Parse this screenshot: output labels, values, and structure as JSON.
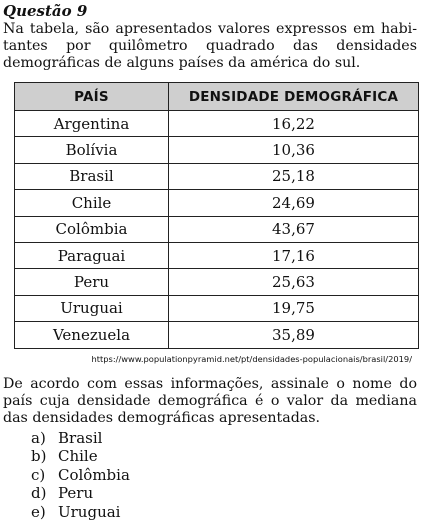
{
  "question_title": "Questão 9",
  "intro": "Na tabela, são apresentados valores expressos em habi- tantes por quilômetro quadrado das densidades demográficas de alguns países da américa do sul.",
  "table": {
    "headers": [
      "PAÍS",
      "DENSIDADE DEMOGRÁFICA"
    ],
    "rows": [
      {
        "country": "Argentina",
        "density": "16,22"
      },
      {
        "country": "Bolívia",
        "density": "10,36"
      },
      {
        "country": "Brasil",
        "density": "25,18"
      },
      {
        "country": "Chile",
        "density": "24,69"
      },
      {
        "country": "Colômbia",
        "density": "43,67"
      },
      {
        "country": "Paraguai",
        "density": "17,16"
      },
      {
        "country": "Peru",
        "density": "25,63"
      },
      {
        "country": "Uruguai",
        "density": "19,75"
      },
      {
        "country": "Venezuela",
        "density": "35,89"
      }
    ]
  },
  "source": "https://www.populationpyramid.net/pt/densidades-populacionais/brasil/2019/",
  "question": "De acordo com essas informações, assinale o nome do país cuja densidade demográfica é o valor da mediana das densidades demográficas apresentadas.",
  "options": [
    {
      "letter": "a)",
      "text": "Brasil"
    },
    {
      "letter": "b)",
      "text": "Chile"
    },
    {
      "letter": "c)",
      "text": "Colômbia"
    },
    {
      "letter": "d)",
      "text": "Peru"
    },
    {
      "letter": "e)",
      "text": "Uruguai"
    }
  ]
}
